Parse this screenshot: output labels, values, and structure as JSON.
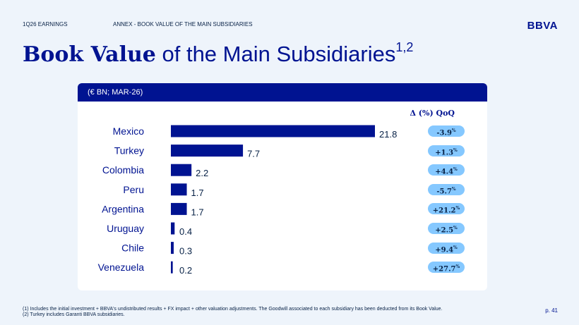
{
  "header": {
    "section": "1Q26 EARNINGS",
    "annex": "ANNEX - BOOK VALUE OF THE MAIN SUBSIDIARIES",
    "logo": "BBVA"
  },
  "title": {
    "bold": "Book Value",
    "rest": " of the Main Subsidiaries",
    "sup": "1,2"
  },
  "card": {
    "unit_label": "(€ BN; MAR-26)",
    "qoq_header": "Δ (%) QoQ"
  },
  "chart_data": {
    "type": "bar",
    "orientation": "horizontal",
    "categories": [
      "Mexico",
      "Turkey",
      "Colombia",
      "Peru",
      "Argentina",
      "Uruguay",
      "Chile",
      "Venezuela"
    ],
    "values": [
      21.8,
      7.7,
      2.2,
      1.7,
      1.7,
      0.4,
      0.3,
      0.2
    ],
    "value_labels": [
      "21.8",
      "7.7",
      "2.2",
      "1.7",
      "1.7",
      "0.4",
      "0.3",
      "0.2"
    ],
    "qoq": [
      "-3.9",
      "+1.3",
      "+4.4",
      "-5.7",
      "+21.2",
      "+2.5",
      "+9.4",
      "+27.7"
    ],
    "qoq_unit": "%",
    "bar_color": "#001391",
    "pill_color": "#85c8ff"
  },
  "footnotes": [
    "(1) Includes the initial investment + BBVA's undistributed results + FX impact + other valuation adjustments. The Goodwill associated to each subsidiary has been deducted from its Book Value.",
    "(2) Turkey includes Garanti BBVA subsidiaries."
  ],
  "page_number": "p. 41"
}
